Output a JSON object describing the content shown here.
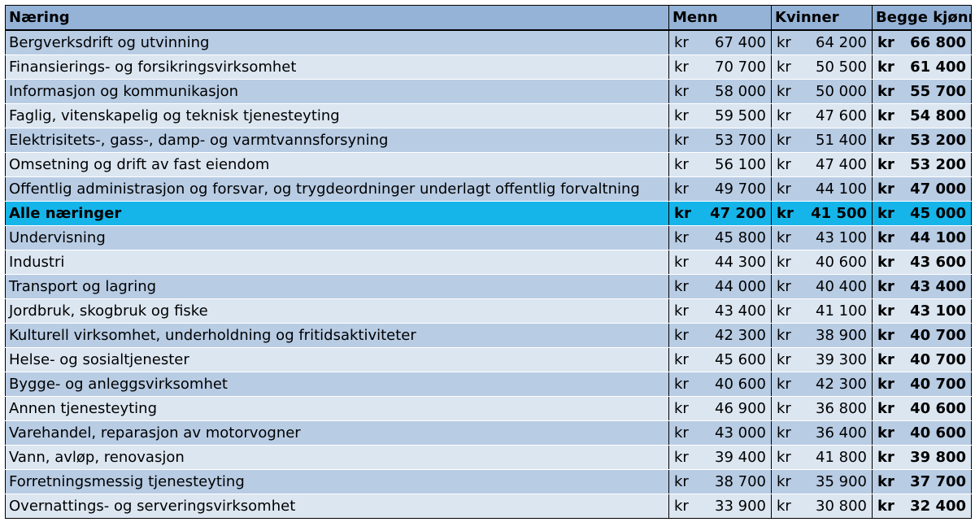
{
  "headers": {
    "naering": "Næring",
    "menn": "Menn",
    "kvinner": "Kvinner",
    "begge": "Begge kjønn"
  },
  "rows": [
    {
      "name": "Bergverksdrift og utvinning",
      "cur_m": "kr",
      "menn": "67 400",
      "cur_k": "kr",
      "kvinner": "64 200",
      "cur_b": "kr",
      "begge": "66 800"
    },
    {
      "name": "Finansierings- og forsikringsvirksomhet",
      "cur_m": "kr",
      "menn": "70 700",
      "cur_k": "kr",
      "kvinner": "50 500",
      "cur_b": "kr",
      "begge": "61 400"
    },
    {
      "name": "Informasjon og kommunikasjon",
      "cur_m": "kr",
      "menn": "58 000",
      "cur_k": "kr",
      "kvinner": "50 000",
      "cur_b": "kr",
      "begge": "55 700"
    },
    {
      "name": "Faglig, vitenskapelig og teknisk tjenesteyting",
      "cur_m": "kr",
      "menn": "59 500",
      "cur_k": "kr",
      "kvinner": "47 600",
      "cur_b": "kr",
      "begge": "54 800"
    },
    {
      "name": "Elektrisitets-, gass-, damp- og varmtvannsforsyning",
      "cur_m": "kr",
      "menn": "53 700",
      "cur_k": "kr",
      "kvinner": "51 400",
      "cur_b": "kr",
      "begge": "53 200"
    },
    {
      "name": "Omsetning og drift av fast eiendom",
      "cur_m": "kr",
      "menn": "56 100",
      "cur_k": "kr",
      "kvinner": "47 400",
      "cur_b": "kr",
      "begge": "53 200"
    },
    {
      "name": "Offentlig administrasjon og forsvar, og trygdeordninger underlagt offentlig forvaltning",
      "cur_m": "kr",
      "menn": "49 700",
      "cur_k": "kr",
      "kvinner": "44 100",
      "cur_b": "kr",
      "begge": "47 000"
    },
    {
      "name": "Alle næringer",
      "cur_m": "kr",
      "menn": "47 200",
      "cur_k": "kr",
      "kvinner": "41 500",
      "cur_b": "kr",
      "begge": "45 000"
    },
    {
      "name": "Undervisning",
      "cur_m": "kr",
      "menn": "45 800",
      "cur_k": "kr",
      "kvinner": "43 100",
      "cur_b": "kr",
      "begge": "44 100"
    },
    {
      "name": "Industri",
      "cur_m": "kr",
      "menn": "44 300",
      "cur_k": "kr",
      "kvinner": "40 600",
      "cur_b": "kr",
      "begge": "43 600"
    },
    {
      "name": "Transport og lagring",
      "cur_m": "kr",
      "menn": "44 000",
      "cur_k": "kr",
      "kvinner": "40 400",
      "cur_b": "kr",
      "begge": "43 400"
    },
    {
      "name": "Jordbruk, skogbruk og fiske",
      "cur_m": "kr",
      "menn": "43 400",
      "cur_k": "kr",
      "kvinner": "41 100",
      "cur_b": "kr",
      "begge": "43 100"
    },
    {
      "name": "Kulturell virksomhet, underholdning og fritidsaktiviteter",
      "cur_m": "kr",
      "menn": "42 300",
      "cur_k": "kr",
      "kvinner": "38 900",
      "cur_b": "kr",
      "begge": "40 700"
    },
    {
      "name": "Helse- og sosialtjenester",
      "cur_m": "kr",
      "menn": "45 600",
      "cur_k": "kr",
      "kvinner": "39 300",
      "cur_b": "kr",
      "begge": "40 700"
    },
    {
      "name": "Bygge- og anleggsvirksomhet",
      "cur_m": "kr",
      "menn": "40 600",
      "cur_k": "kr",
      "kvinner": "42 300",
      "cur_b": "kr",
      "begge": "40 700"
    },
    {
      "name": "Annen tjenesteyting",
      "cur_m": "kr",
      "menn": "46 900",
      "cur_k": "kr",
      "kvinner": "36 800",
      "cur_b": "kr",
      "begge": "40 600"
    },
    {
      "name": "Varehandel, reparasjon av motorvogner",
      "cur_m": "kr",
      "menn": "43 000",
      "cur_k": "kr",
      "kvinner": "36 400",
      "cur_b": "kr",
      "begge": "40 600"
    },
    {
      "name": "Vann, avløp, renovasjon",
      "cur_m": "kr",
      "menn": "39 400",
      "cur_k": "kr",
      "kvinner": "41 800",
      "cur_b": "kr",
      "begge": "39 800"
    },
    {
      "name": "Forretningsmessig tjenesteyting",
      "cur_m": "kr",
      "menn": "38 700",
      "cur_k": "kr",
      "kvinner": "35 900",
      "cur_b": "kr",
      "begge": "37 700"
    },
    {
      "name": "Overnattings- og serveringsvirksomhet",
      "cur_m": "kr",
      "menn": "33 900",
      "cur_k": "kr",
      "kvinner": "30 800",
      "cur_b": "kr",
      "begge": "32 400"
    }
  ],
  "highlight_row": "Alle næringer",
  "colors": {
    "header_bg": "#95b3d7",
    "row_dark": "#b8cce4",
    "row_light": "#dce6f1",
    "highlight": "#15b5ea"
  }
}
